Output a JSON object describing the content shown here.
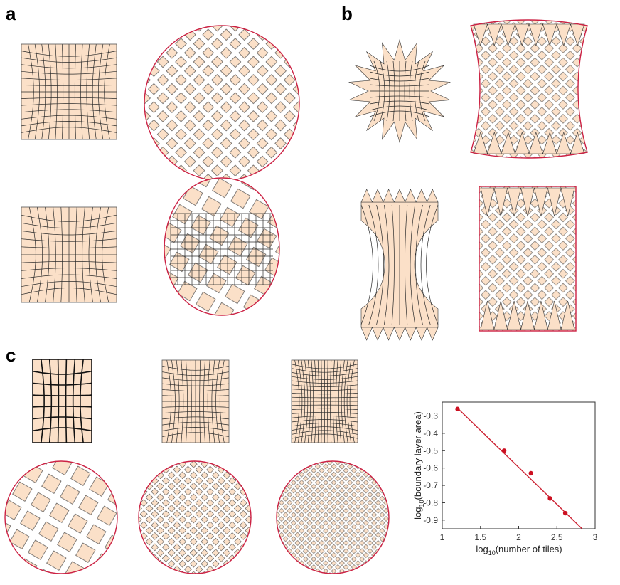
{
  "panels": {
    "a": {
      "letter": "a"
    },
    "b": {
      "letter": "b"
    },
    "c": {
      "letter": "c"
    }
  },
  "colors": {
    "tile": "#fbe0c8",
    "boundary": "#cc2244",
    "fit_line": "#cc2233",
    "points": "#cc1122"
  },
  "chart_data": {
    "type": "scatter",
    "title": "",
    "xlabel": {
      "prefix": "log",
      "sub": "10",
      "suffix": "(number of tiles)"
    },
    "ylabel": {
      "prefix": "log",
      "sub": "10",
      "suffix": "(boundary layer area)"
    },
    "xlim": [
      1,
      3
    ],
    "ylim": [
      -0.95,
      -0.22
    ],
    "x_ticks": [
      "1",
      "1.5",
      "2",
      "2.5",
      "3"
    ],
    "y_ticks": [
      "-0.3",
      "-0.4",
      "-0.5",
      "-0.6",
      "-0.7",
      "-0.8",
      "-0.9"
    ],
    "series": [
      {
        "points": [
          [
            1.2,
            -0.26
          ],
          [
            1.81,
            -0.5
          ],
          [
            2.16,
            -0.63
          ],
          [
            2.41,
            -0.775
          ],
          [
            2.61,
            -0.86
          ]
        ]
      }
    ],
    "fit": {
      "x": [
        1.2,
        2.83
      ],
      "y": [
        -0.255,
        -0.95
      ]
    },
    "grid": false,
    "box": true
  }
}
